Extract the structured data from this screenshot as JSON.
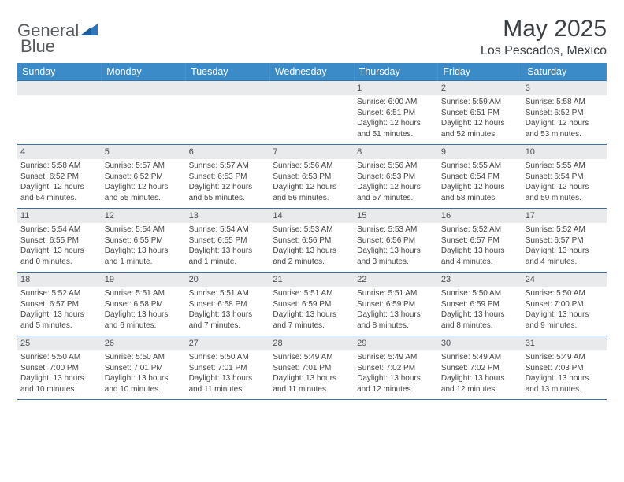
{
  "logo": {
    "text1": "General",
    "text2": "Blue"
  },
  "title": "May 2025",
  "location": "Los Pescados, Mexico",
  "header_bg": "#3b8bc9",
  "days": [
    "Sunday",
    "Monday",
    "Tuesday",
    "Wednesday",
    "Thursday",
    "Friday",
    "Saturday"
  ],
  "weeks": [
    [
      null,
      null,
      null,
      null,
      {
        "n": "1",
        "sr": "Sunrise: 6:00 AM",
        "ss": "Sunset: 6:51 PM",
        "dl": "Daylight: 12 hours and 51 minutes."
      },
      {
        "n": "2",
        "sr": "Sunrise: 5:59 AM",
        "ss": "Sunset: 6:51 PM",
        "dl": "Daylight: 12 hours and 52 minutes."
      },
      {
        "n": "3",
        "sr": "Sunrise: 5:58 AM",
        "ss": "Sunset: 6:52 PM",
        "dl": "Daylight: 12 hours and 53 minutes."
      }
    ],
    [
      {
        "n": "4",
        "sr": "Sunrise: 5:58 AM",
        "ss": "Sunset: 6:52 PM",
        "dl": "Daylight: 12 hours and 54 minutes."
      },
      {
        "n": "5",
        "sr": "Sunrise: 5:57 AM",
        "ss": "Sunset: 6:52 PM",
        "dl": "Daylight: 12 hours and 55 minutes."
      },
      {
        "n": "6",
        "sr": "Sunrise: 5:57 AM",
        "ss": "Sunset: 6:53 PM",
        "dl": "Daylight: 12 hours and 55 minutes."
      },
      {
        "n": "7",
        "sr": "Sunrise: 5:56 AM",
        "ss": "Sunset: 6:53 PM",
        "dl": "Daylight: 12 hours and 56 minutes."
      },
      {
        "n": "8",
        "sr": "Sunrise: 5:56 AM",
        "ss": "Sunset: 6:53 PM",
        "dl": "Daylight: 12 hours and 57 minutes."
      },
      {
        "n": "9",
        "sr": "Sunrise: 5:55 AM",
        "ss": "Sunset: 6:54 PM",
        "dl": "Daylight: 12 hours and 58 minutes."
      },
      {
        "n": "10",
        "sr": "Sunrise: 5:55 AM",
        "ss": "Sunset: 6:54 PM",
        "dl": "Daylight: 12 hours and 59 minutes."
      }
    ],
    [
      {
        "n": "11",
        "sr": "Sunrise: 5:54 AM",
        "ss": "Sunset: 6:55 PM",
        "dl": "Daylight: 13 hours and 0 minutes."
      },
      {
        "n": "12",
        "sr": "Sunrise: 5:54 AM",
        "ss": "Sunset: 6:55 PM",
        "dl": "Daylight: 13 hours and 1 minute."
      },
      {
        "n": "13",
        "sr": "Sunrise: 5:54 AM",
        "ss": "Sunset: 6:55 PM",
        "dl": "Daylight: 13 hours and 1 minute."
      },
      {
        "n": "14",
        "sr": "Sunrise: 5:53 AM",
        "ss": "Sunset: 6:56 PM",
        "dl": "Daylight: 13 hours and 2 minutes."
      },
      {
        "n": "15",
        "sr": "Sunrise: 5:53 AM",
        "ss": "Sunset: 6:56 PM",
        "dl": "Daylight: 13 hours and 3 minutes."
      },
      {
        "n": "16",
        "sr": "Sunrise: 5:52 AM",
        "ss": "Sunset: 6:57 PM",
        "dl": "Daylight: 13 hours and 4 minutes."
      },
      {
        "n": "17",
        "sr": "Sunrise: 5:52 AM",
        "ss": "Sunset: 6:57 PM",
        "dl": "Daylight: 13 hours and 4 minutes."
      }
    ],
    [
      {
        "n": "18",
        "sr": "Sunrise: 5:52 AM",
        "ss": "Sunset: 6:57 PM",
        "dl": "Daylight: 13 hours and 5 minutes."
      },
      {
        "n": "19",
        "sr": "Sunrise: 5:51 AM",
        "ss": "Sunset: 6:58 PM",
        "dl": "Daylight: 13 hours and 6 minutes."
      },
      {
        "n": "20",
        "sr": "Sunrise: 5:51 AM",
        "ss": "Sunset: 6:58 PM",
        "dl": "Daylight: 13 hours and 7 minutes."
      },
      {
        "n": "21",
        "sr": "Sunrise: 5:51 AM",
        "ss": "Sunset: 6:59 PM",
        "dl": "Daylight: 13 hours and 7 minutes."
      },
      {
        "n": "22",
        "sr": "Sunrise: 5:51 AM",
        "ss": "Sunset: 6:59 PM",
        "dl": "Daylight: 13 hours and 8 minutes."
      },
      {
        "n": "23",
        "sr": "Sunrise: 5:50 AM",
        "ss": "Sunset: 6:59 PM",
        "dl": "Daylight: 13 hours and 8 minutes."
      },
      {
        "n": "24",
        "sr": "Sunrise: 5:50 AM",
        "ss": "Sunset: 7:00 PM",
        "dl": "Daylight: 13 hours and 9 minutes."
      }
    ],
    [
      {
        "n": "25",
        "sr": "Sunrise: 5:50 AM",
        "ss": "Sunset: 7:00 PM",
        "dl": "Daylight: 13 hours and 10 minutes."
      },
      {
        "n": "26",
        "sr": "Sunrise: 5:50 AM",
        "ss": "Sunset: 7:01 PM",
        "dl": "Daylight: 13 hours and 10 minutes."
      },
      {
        "n": "27",
        "sr": "Sunrise: 5:50 AM",
        "ss": "Sunset: 7:01 PM",
        "dl": "Daylight: 13 hours and 11 minutes."
      },
      {
        "n": "28",
        "sr": "Sunrise: 5:49 AM",
        "ss": "Sunset: 7:01 PM",
        "dl": "Daylight: 13 hours and 11 minutes."
      },
      {
        "n": "29",
        "sr": "Sunrise: 5:49 AM",
        "ss": "Sunset: 7:02 PM",
        "dl": "Daylight: 13 hours and 12 minutes."
      },
      {
        "n": "30",
        "sr": "Sunrise: 5:49 AM",
        "ss": "Sunset: 7:02 PM",
        "dl": "Daylight: 13 hours and 12 minutes."
      },
      {
        "n": "31",
        "sr": "Sunrise: 5:49 AM",
        "ss": "Sunset: 7:03 PM",
        "dl": "Daylight: 13 hours and 13 minutes."
      }
    ]
  ]
}
